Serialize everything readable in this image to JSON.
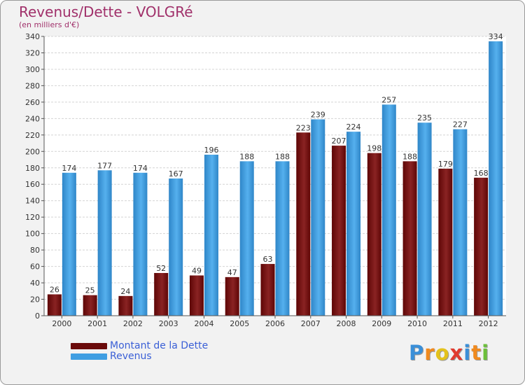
{
  "chart_data": {
    "type": "bar",
    "title": "Revenus/Dette - VOLGRé",
    "subtitle": "(en milliers d'€)",
    "categories": [
      "2000",
      "2001",
      "2002",
      "2003",
      "2004",
      "2005",
      "2006",
      "2007",
      "2008",
      "2009",
      "2010",
      "2011",
      "2012"
    ],
    "series": [
      {
        "name": "Montant de la Dette",
        "color": "#7b1010",
        "values": [
          26,
          25,
          24,
          52,
          49,
          47,
          63,
          223,
          207,
          198,
          188,
          179,
          168
        ]
      },
      {
        "name": "Revenus",
        "color": "#3f9ee2",
        "values": [
          174,
          177,
          174,
          167,
          196,
          188,
          188,
          239,
          224,
          257,
          235,
          227,
          334
        ]
      }
    ],
    "ylim": [
      0,
      340
    ],
    "yticks": [
      0,
      20,
      40,
      60,
      80,
      100,
      120,
      140,
      160,
      180,
      200,
      220,
      240,
      260,
      280,
      300,
      320,
      340
    ],
    "grid": true,
    "legend": "bottom-left"
  },
  "logo": {
    "letters": [
      "P",
      "r",
      "o",
      "x",
      "i",
      "t",
      "i"
    ],
    "colors": [
      "#3a8fd8",
      "#f08a1e",
      "#e3c21c",
      "#e03a2e",
      "#3a8fd8",
      "#f08a1e",
      "#6cbf3a"
    ]
  }
}
